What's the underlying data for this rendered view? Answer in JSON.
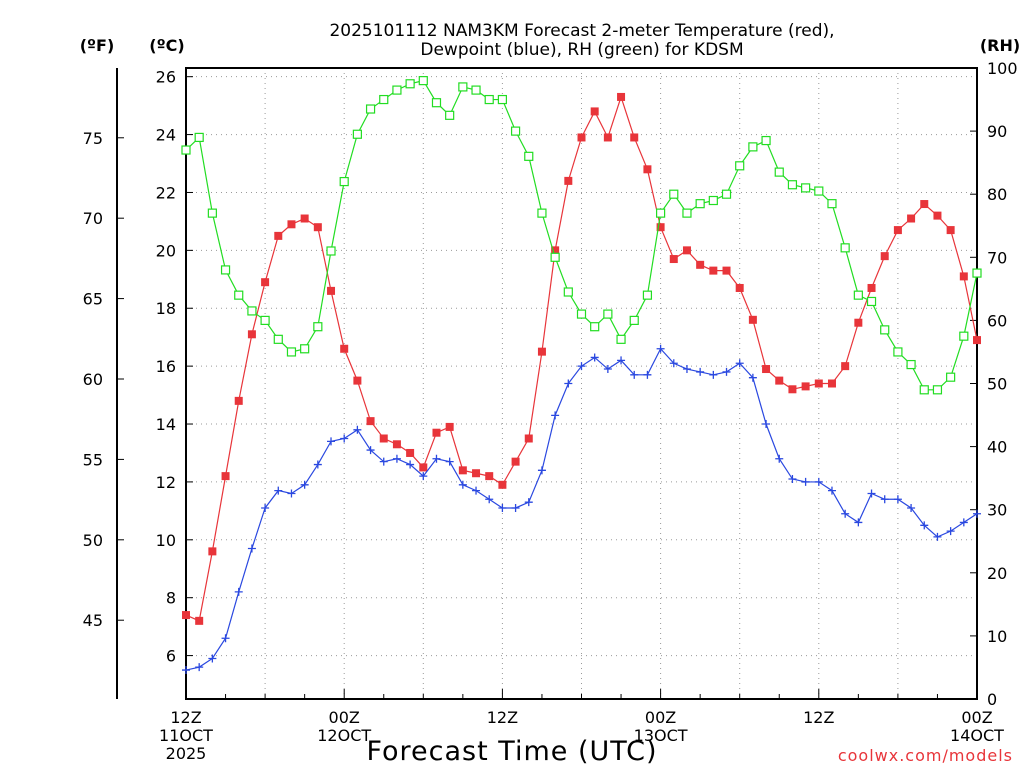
{
  "chart_data": {
    "type": "line",
    "title_line1": "2025101112 NAM3KM Forecast 2-meter Temperature (red),",
    "title_line2": "Dewpoint (blue), RH (green) for KDSM",
    "unit_left_f": "(ºF)",
    "unit_left_c": "(ºC)",
    "unit_right": "(RH)",
    "xlabel": "Forecast Time (UTC)",
    "credit": "coolwx.com/models",
    "x_start_hour": 0,
    "x_end_hour": 60,
    "x_ticks": [
      {
        "hour": 0,
        "lines": [
          "12Z",
          "11OCT",
          "2025"
        ]
      },
      {
        "hour": 12,
        "lines": [
          "00Z",
          "12OCT"
        ]
      },
      {
        "hour": 24,
        "lines": [
          "12Z"
        ]
      },
      {
        "hour": 36,
        "lines": [
          "00Z",
          "13OCT"
        ]
      },
      {
        "hour": 48,
        "lines": [
          "12Z"
        ]
      },
      {
        "hour": 60,
        "lines": [
          "00Z",
          "14OCT"
        ]
      }
    ],
    "y_celsius": {
      "range": [
        4.5,
        26.3
      ],
      "ticks": [
        6,
        8,
        10,
        12,
        14,
        16,
        18,
        20,
        22,
        24,
        26
      ]
    },
    "y_fahrenheit_ticks": [
      45,
      50,
      55,
      60,
      65,
      70,
      75
    ],
    "y_rh": {
      "range": [
        0,
        100
      ],
      "ticks": [
        0,
        10,
        20,
        30,
        40,
        50,
        60,
        70,
        80,
        90,
        100
      ]
    },
    "grid": true,
    "series": [
      {
        "name": "2-meter Temperature",
        "color": "#e8353a",
        "axis": "celsius",
        "marker": "filled-square",
        "values": [
          7.4,
          7.2,
          9.6,
          12.2,
          14.8,
          17.1,
          18.9,
          20.5,
          20.9,
          21.1,
          20.8,
          18.6,
          16.6,
          15.5,
          14.1,
          13.5,
          13.3,
          13.0,
          12.5,
          13.7,
          13.9,
          12.4,
          12.3,
          12.2,
          11.9,
          12.7,
          13.5,
          16.5,
          20.0,
          22.4,
          23.9,
          24.8,
          23.9,
          25.3,
          23.9,
          22.8,
          20.8,
          19.7,
          20.0,
          19.5,
          19.3,
          19.3,
          18.7,
          17.6,
          15.9,
          15.5,
          15.2,
          15.3,
          15.4,
          15.4,
          16.0,
          17.5,
          18.7,
          19.8,
          20.7,
          21.1,
          21.6,
          21.2,
          20.7,
          19.1,
          16.9
        ]
      },
      {
        "name": "Dewpoint",
        "color": "#2a48e0",
        "axis": "celsius",
        "marker": "plus",
        "values": [
          5.5,
          5.6,
          5.9,
          6.6,
          8.2,
          9.7,
          11.1,
          11.7,
          11.6,
          11.9,
          12.6,
          13.4,
          13.5,
          13.8,
          13.1,
          12.7,
          12.8,
          12.6,
          12.2,
          12.8,
          12.7,
          11.9,
          11.7,
          11.4,
          11.1,
          11.1,
          11.3,
          12.4,
          14.3,
          15.4,
          16.0,
          16.3,
          15.9,
          16.2,
          15.7,
          15.7,
          16.6,
          16.1,
          15.9,
          15.8,
          15.7,
          15.8,
          16.1,
          15.6,
          14.0,
          12.8,
          12.1,
          12.0,
          12.0,
          11.7,
          10.9,
          10.6,
          11.6,
          11.4,
          11.4,
          11.1,
          10.5,
          10.1,
          10.3,
          10.6,
          10.9
        ]
      },
      {
        "name": "RH",
        "color": "#22dd22",
        "axis": "rh",
        "marker": "open-square",
        "values": [
          87,
          89,
          77,
          68,
          64,
          61.5,
          60,
          57,
          55,
          55.5,
          59,
          71,
          82,
          89.5,
          93.5,
          95,
          96.5,
          97.5,
          98,
          94.5,
          92.5,
          97,
          96.5,
          95,
          95,
          90,
          86,
          77,
          70,
          64.5,
          61,
          59,
          61,
          57,
          60,
          64,
          77,
          80,
          77,
          78.5,
          79,
          80,
          84.5,
          87.5,
          88.5,
          83.5,
          81.5,
          81,
          80.5,
          78.5,
          71.5,
          64,
          63,
          58.5,
          55,
          53,
          49,
          49,
          51,
          57.5,
          67.5
        ]
      }
    ]
  }
}
